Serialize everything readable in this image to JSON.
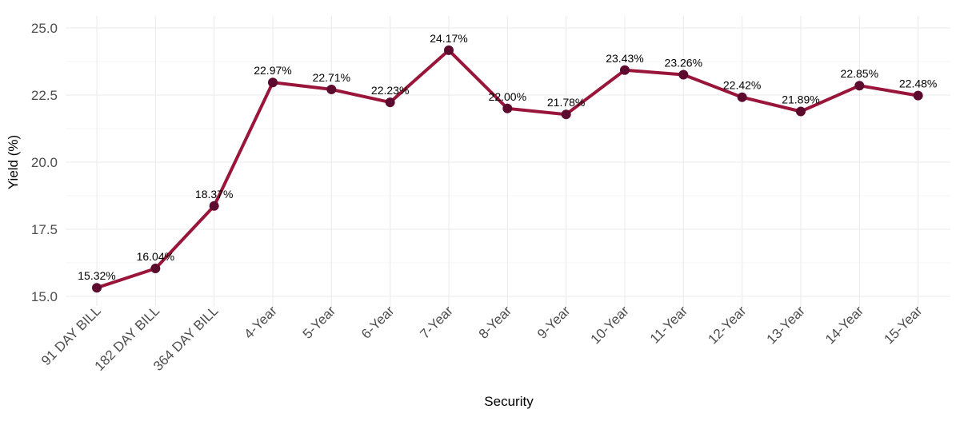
{
  "chart_data": {
    "type": "line",
    "title": "",
    "xlabel": "Security",
    "ylabel": "Yield (%)",
    "ylim": [
      15.0,
      25.0
    ],
    "yticks": [
      15.0,
      17.5,
      20.0,
      22.5,
      25.0
    ],
    "ytick_labels": [
      "15.0",
      "17.5",
      "20.0",
      "22.5",
      "25.0"
    ],
    "grid": true,
    "legend": "none",
    "line_color": "#99153a",
    "marker_color": "#5c0a2e",
    "categories": [
      "91 DAY BILL",
      "182 DAY BILL",
      "364 DAY BILL",
      "4-Year",
      "5-Year",
      "6-Year",
      "7-Year",
      "8-Year",
      "9-Year",
      "10-Year",
      "11-Year",
      "12-Year",
      "13-Year",
      "14-Year",
      "15-Year"
    ],
    "values": [
      15.32,
      16.04,
      18.37,
      22.97,
      22.71,
      22.23,
      24.17,
      22.0,
      21.78,
      23.43,
      23.26,
      22.42,
      21.89,
      22.85,
      22.48
    ],
    "data_labels": [
      "15.32%",
      "16.04%",
      "18.37%",
      "22.97%",
      "22.71%",
      "22.23%",
      "24.17%",
      "22.00%",
      "21.78%",
      "23.43%",
      "23.26%",
      "22.42%",
      "21.89%",
      "22.85%",
      "22.48%"
    ]
  }
}
